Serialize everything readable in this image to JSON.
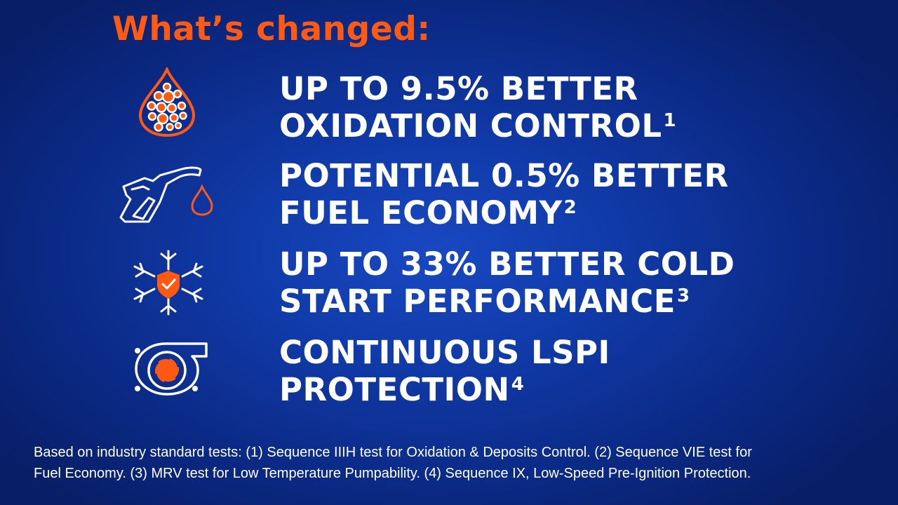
{
  "title": "What’s changed:",
  "colors": {
    "accent": "#ff5a14",
    "text": "#ffffff",
    "background": "#0f38a3"
  },
  "items": [
    {
      "icon": "oil-drop-bubbles-icon",
      "line1": "UP TO 9.5% BETTER",
      "line2": "OXIDATION CONTROL",
      "sup": "1"
    },
    {
      "icon": "fuel-nozzle-icon",
      "line1": "POTENTIAL 0.5% BETTER",
      "line2": "FUEL ECONOMY",
      "sup": "2"
    },
    {
      "icon": "snowflake-shield-icon",
      "line1": "UP TO 33% BETTER COLD",
      "line2": "START PERFORMANCE",
      "sup": "3"
    },
    {
      "icon": "turbocharger-icon",
      "line1": "CONTINUOUS LSPI",
      "line2": "PROTECTION",
      "sup": "4"
    }
  ],
  "footnote": {
    "line1": "Based on industry standard tests: (1) Sequence IIIH test for Oxidation & Deposits Control. (2) Sequence VIE test for",
    "line2": "Fuel Economy. (3) MRV test for Low Temperature Pumpability. (4) Sequence IX, Low-Speed Pre-Ignition Protection."
  }
}
